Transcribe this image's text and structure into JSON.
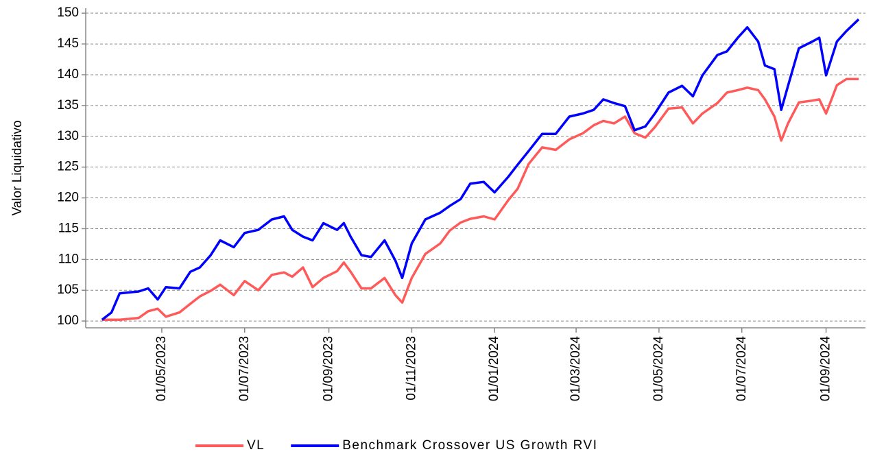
{
  "chart_data": {
    "type": "line",
    "y_label": "Valor Liquidativo",
    "x": [
      "18/03/2023",
      "25/03/2023",
      "31/03/2023",
      "14/04/2023",
      "21/04/2023",
      "28/04/2023",
      "04/05/2023",
      "14/05/2023",
      "22/05/2023",
      "29/05/2023",
      "06/06/2023",
      "13/06/2023",
      "23/06/2023",
      "01/07/2023",
      "11/07/2023",
      "21/07/2023",
      "30/07/2023",
      "05/08/2023",
      "13/08/2023",
      "20/08/2023",
      "28/08/2023",
      "07/09/2023",
      "12/09/2023",
      "17/09/2023",
      "25/09/2023",
      "02/10/2023",
      "12/10/2023",
      "20/10/2023",
      "25/10/2023",
      "01/11/2023",
      "11/11/2023",
      "22/11/2023",
      "29/11/2023",
      "07/12/2023",
      "14/12/2023",
      "24/12/2023",
      "01/01/2024",
      "11/01/2024",
      "18/01/2024",
      "26/01/2024",
      "05/02/2024",
      "15/02/2024",
      "25/02/2024",
      "06/03/2024",
      "14/03/2024",
      "21/03/2024",
      "29/03/2024",
      "06/04/2024",
      "13/04/2024",
      "21/04/2024",
      "28/04/2024",
      "08/05/2024",
      "18/05/2024",
      "26/05/2024",
      "02/06/2024",
      "13/06/2024",
      "20/06/2024",
      "28/06/2024",
      "05/07/2024",
      "13/07/2024",
      "18/07/2024",
      "25/07/2024",
      "30/07/2024",
      "04/08/2024",
      "12/08/2024",
      "22/08/2024",
      "27/08/2024",
      "01/09/2024",
      "09/09/2024",
      "16/09/2024",
      "25/09/2024"
    ],
    "series": [
      {
        "name": "VL",
        "color": "#ff5a5a",
        "values": [
          100.2,
          100.2,
          100.2,
          100.5,
          101.6,
          102,
          100.7,
          101.4,
          102.8,
          104,
          104.9,
          105.9,
          104.2,
          106.5,
          105,
          107.5,
          107.9,
          107.2,
          108.7,
          105.5,
          107,
          108.1,
          109.5,
          108,
          105.3,
          105.3,
          107,
          104.2,
          103,
          107,
          110.9,
          112.6,
          114.7,
          116,
          116.6,
          117,
          116.5,
          119.6,
          121.5,
          125.5,
          128.2,
          127.8,
          129.5,
          130.5,
          131.8,
          132.5,
          132.1,
          133.2,
          130.5,
          129.8,
          131.5,
          134.5,
          134.7,
          132.1,
          133.7,
          135.4,
          137.1,
          137.5,
          137.9,
          137.5,
          136,
          133.2,
          129.3,
          132.1,
          135.5,
          135.8,
          136,
          133.7,
          138.3,
          139.3,
          139.3
        ]
      },
      {
        "name": "Benchmark Crossover US Growth RVI",
        "color": "#0000ff",
        "values": [
          100.2,
          101.4,
          104.5,
          104.8,
          105.3,
          103.5,
          105.5,
          105.3,
          108,
          108.7,
          110.7,
          113.1,
          112,
          114.3,
          114.8,
          116.5,
          117,
          114.8,
          113.7,
          113.1,
          115.9,
          114.8,
          115.9,
          113.7,
          110.7,
          110.4,
          113.1,
          109.8,
          107,
          112.6,
          116.5,
          117.6,
          118.7,
          119.8,
          122.3,
          122.6,
          120.9,
          123.4,
          125.4,
          127.6,
          130.4,
          130.4,
          133.2,
          133.7,
          134.3,
          136,
          135.4,
          134.9,
          131,
          131.6,
          133.7,
          137.1,
          138.2,
          136.5,
          139.9,
          143.2,
          143.8,
          146,
          147.7,
          145.4,
          141.5,
          140.9,
          134.3,
          138.2,
          144.3,
          145.4,
          146,
          139.9,
          145.4,
          147.1,
          149
        ]
      }
    ],
    "xlim": [
      "06/03/2023",
      "30/09/2024"
    ],
    "xticks": [
      "01/05/2023",
      "01/07/2023",
      "01/09/2023",
      "01/11/2023",
      "01/01/2024",
      "01/03/2024",
      "01/05/2024",
      "01/07/2024",
      "01/09/2024"
    ],
    "ylim": [
      98.9,
      150.8
    ],
    "yticks": [
      100,
      105,
      110,
      115,
      120,
      125,
      130,
      135,
      140,
      145,
      150
    ],
    "grid": true,
    "legend": "bottom"
  }
}
